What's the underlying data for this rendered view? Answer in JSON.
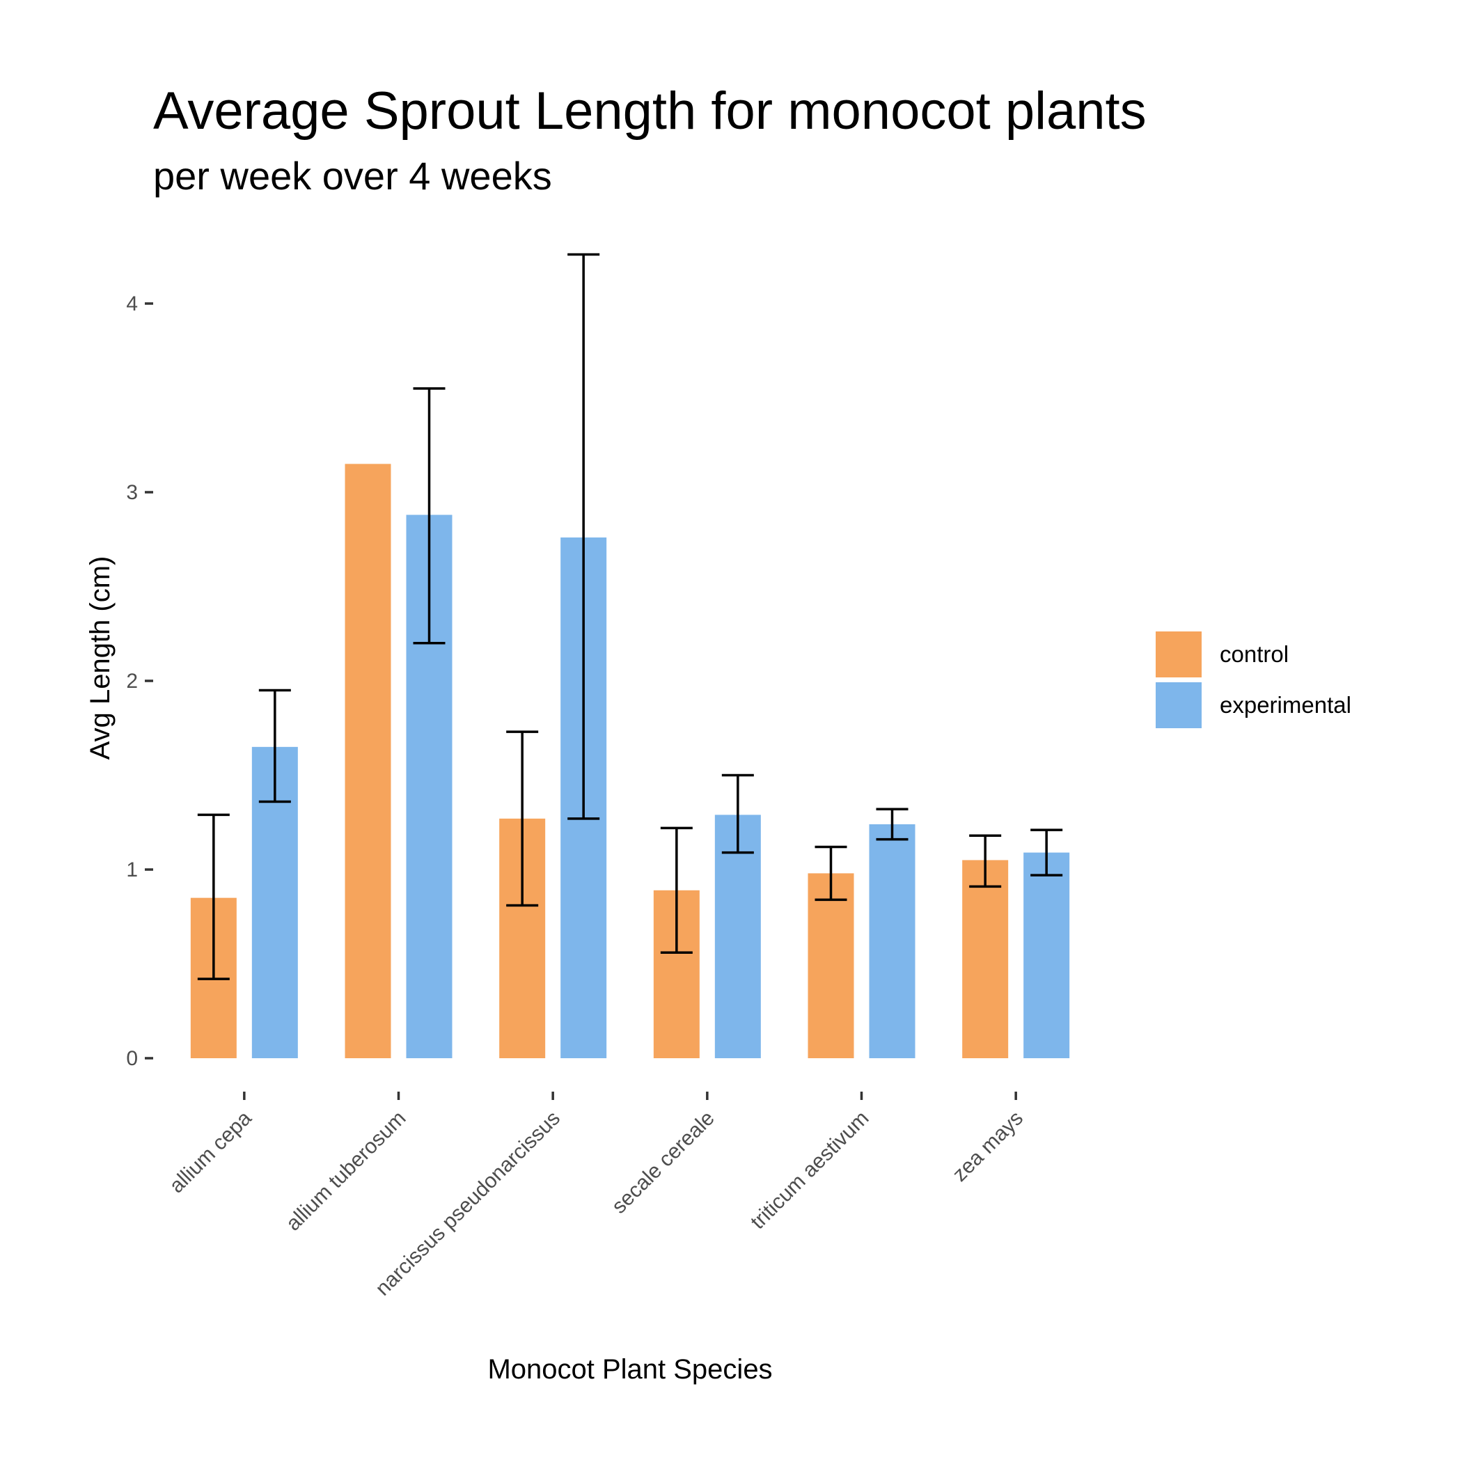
{
  "chart_data": {
    "type": "bar",
    "title": "Average Sprout Length for monocot plants",
    "subtitle": "per week over 4 weeks",
    "xlabel": "Monocot Plant Species",
    "ylabel": "Avg Length (cm)",
    "ylim": [
      0,
      4.5
    ],
    "yticks": [
      0,
      1,
      2,
      3,
      4
    ],
    "grid": false,
    "legend_position": "right",
    "categories": [
      "allium cepa",
      "allium tuberosum",
      "narcissus pseudonarcissus",
      "secale cereale",
      "triticum aestivum",
      "zea mays"
    ],
    "series": [
      {
        "name": "control",
        "color": "#F6A45C",
        "values": [
          0.85,
          3.15,
          1.27,
          0.89,
          0.98,
          1.05
        ],
        "error_low": [
          0.42,
          null,
          0.81,
          0.56,
          0.84,
          0.91
        ],
        "error_high": [
          1.29,
          null,
          1.73,
          1.22,
          1.12,
          1.18
        ]
      },
      {
        "name": "experimental",
        "color": "#7EB6EB",
        "values": [
          1.65,
          2.88,
          2.76,
          1.29,
          1.24,
          1.09
        ],
        "error_low": [
          1.36,
          2.2,
          1.27,
          1.09,
          1.16,
          0.97
        ],
        "error_high": [
          1.95,
          3.55,
          4.26,
          1.5,
          1.32,
          1.21
        ]
      }
    ]
  }
}
